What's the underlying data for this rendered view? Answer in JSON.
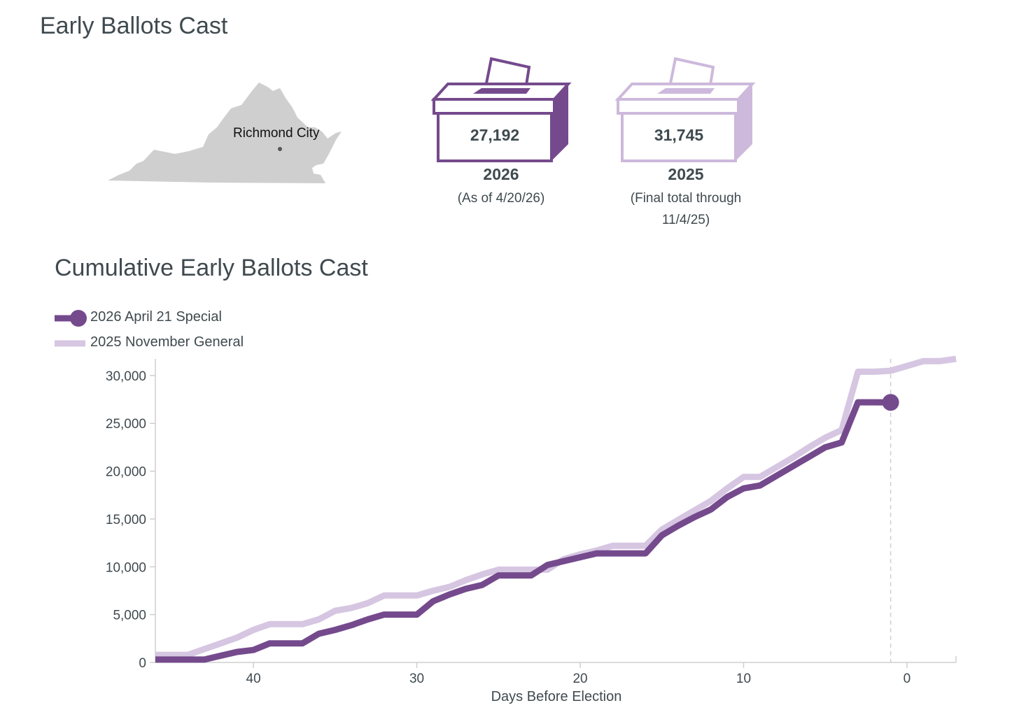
{
  "header": {
    "title": "Early Ballots Cast"
  },
  "map": {
    "label": "Richmond City"
  },
  "ballot_boxes": [
    {
      "value": "27,192",
      "year": "2026",
      "note": "(As of 4/20/26)",
      "color": "#754a8d"
    },
    {
      "value": "31,745",
      "year": "2025",
      "note_line1": "(Final total through",
      "note_line2": "11/4/25)",
      "color": "#cdb9dc"
    }
  ],
  "chart_title": "Cumulative Early Ballots Cast",
  "legend": [
    {
      "label": "2026 April 21 Special",
      "color": "#754a8d"
    },
    {
      "label": "2025 November General",
      "color": "#d6c6e2"
    }
  ],
  "chart_data": {
    "type": "line",
    "xlabel": "Days Before Election",
    "ylabel": "",
    "xlim": [
      46,
      -3
    ],
    "ylim": [
      0,
      31745
    ],
    "x_ticks": [
      40,
      30,
      20,
      10,
      0
    ],
    "y_ticks": [
      0,
      5000,
      10000,
      15000,
      20000,
      25000,
      30000
    ],
    "y_tick_labels": [
      "0",
      "5,000",
      "10,000",
      "15,000",
      "20,000",
      "25,000",
      "30,000"
    ],
    "reference_line_x": 1,
    "series": [
      {
        "name": "2026 April 21 Special",
        "color": "#754a8d",
        "x": [
          46,
          45,
          44,
          43,
          42,
          41,
          40,
          39,
          38,
          37,
          36,
          35,
          34,
          33,
          32,
          31,
          30,
          29,
          28,
          27,
          26,
          25,
          24,
          23,
          22,
          21,
          20,
          19,
          18,
          17,
          16,
          15,
          14,
          13,
          12,
          11,
          10,
          9,
          8,
          7,
          6,
          5,
          4,
          3,
          2,
          1
        ],
        "y": [
          300,
          300,
          300,
          300,
          700,
          1100,
          1300,
          2000,
          2000,
          2000,
          3000,
          3400,
          3900,
          4500,
          5000,
          5000,
          5000,
          6400,
          7100,
          7700,
          8100,
          9100,
          9100,
          9100,
          10200,
          10600,
          11000,
          11400,
          11400,
          11400,
          11400,
          13300,
          14300,
          15200,
          16000,
          17300,
          18200,
          18500,
          19500,
          20500,
          21500,
          22500,
          23000,
          27200,
          27200,
          27192
        ]
      },
      {
        "name": "2025 November General",
        "color": "#d6c6e2",
        "x": [
          46,
          45,
          44,
          43,
          42,
          41,
          40,
          39,
          38,
          37,
          36,
          35,
          34,
          33,
          32,
          31,
          30,
          29,
          28,
          27,
          26,
          25,
          24,
          23,
          22,
          21,
          20,
          19,
          18,
          17,
          16,
          15,
          14,
          13,
          12,
          11,
          10,
          9,
          8,
          7,
          6,
          5,
          4,
          3,
          2,
          1,
          0,
          -1,
          -2,
          -3
        ],
        "y": [
          800,
          800,
          800,
          1400,
          2000,
          2600,
          3400,
          4000,
          4000,
          4000,
          4500,
          5400,
          5700,
          6200,
          7000,
          7000,
          7000,
          7500,
          7900,
          8600,
          9200,
          9700,
          9700,
          9700,
          9700,
          10800,
          11300,
          11700,
          12200,
          12200,
          12200,
          13900,
          14900,
          15900,
          16900,
          18200,
          19400,
          19400,
          20400,
          21400,
          22500,
          23500,
          24300,
          30400,
          30400,
          30500,
          31000,
          31500,
          31500,
          31745
        ]
      }
    ]
  }
}
